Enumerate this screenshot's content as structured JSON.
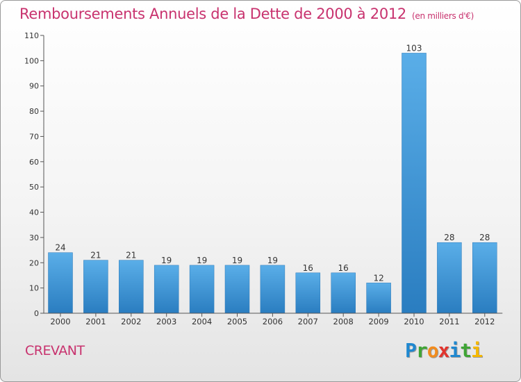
{
  "title": "Remboursements Annuels de la Dette de 2000 à 2012",
  "subtitle": "(en milliers d'€)",
  "commune": "CREVANT",
  "logo": {
    "letters": [
      {
        "char": "P",
        "color": "#1f88d0"
      },
      {
        "char": "r",
        "color": "#3fa535"
      },
      {
        "char": "o",
        "color": "#f28c1e"
      },
      {
        "char": "x",
        "color": "#e2342d"
      },
      {
        "char": "i",
        "color": "#1f88d0"
      },
      {
        "char": "t",
        "color": "#3fa535"
      },
      {
        "char": "i",
        "color": "#f5b800"
      }
    ]
  },
  "chart_data": {
    "type": "bar",
    "title": "Remboursements Annuels de la Dette de 2000 à 2012",
    "xlabel": "",
    "ylabel": "",
    "categories": [
      "2000",
      "2001",
      "2002",
      "2003",
      "2004",
      "2005",
      "2006",
      "2007",
      "2008",
      "2009",
      "2010",
      "2011",
      "2012"
    ],
    "values": [
      24,
      21,
      21,
      19,
      19,
      19,
      19,
      16,
      16,
      12,
      103,
      28,
      28
    ],
    "ylim": [
      0,
      110
    ],
    "yticks": [
      0,
      10,
      20,
      30,
      40,
      50,
      60,
      70,
      80,
      90,
      100,
      110
    ],
    "bar_color": "#3a93d8",
    "grid": false,
    "legend": "none"
  }
}
